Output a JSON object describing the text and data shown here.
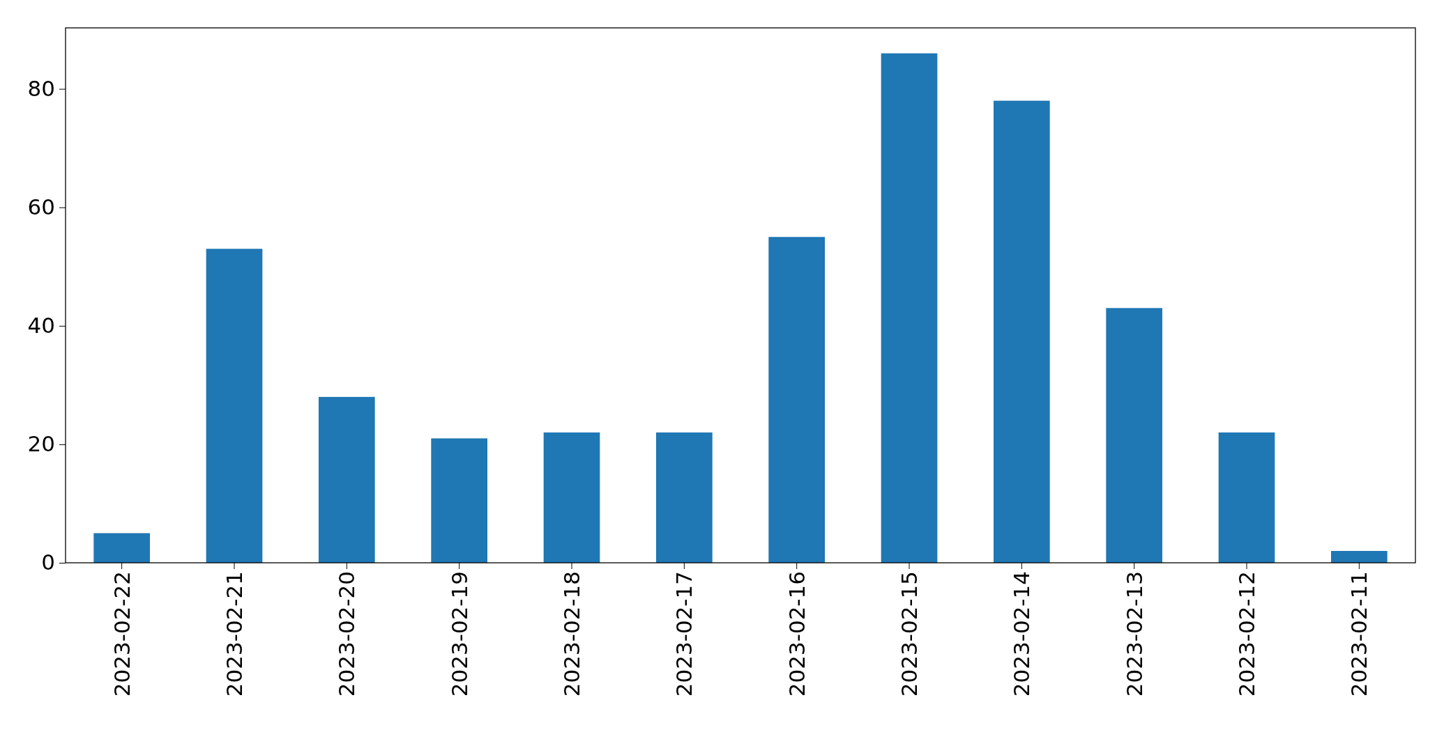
{
  "chart_data": {
    "type": "bar",
    "categories": [
      "2023-02-22",
      "2023-02-21",
      "2023-02-20",
      "2023-02-19",
      "2023-02-18",
      "2023-02-17",
      "2023-02-16",
      "2023-02-15",
      "2023-02-14",
      "2023-02-13",
      "2023-02-12",
      "2023-02-11"
    ],
    "values": [
      5,
      53,
      28,
      21,
      22,
      22,
      55,
      86,
      78,
      43,
      22,
      2
    ],
    "color": "#1f77b4",
    "ylim": [
      0,
      90.3
    ],
    "yticks": [
      0,
      20,
      40,
      60,
      80
    ]
  }
}
